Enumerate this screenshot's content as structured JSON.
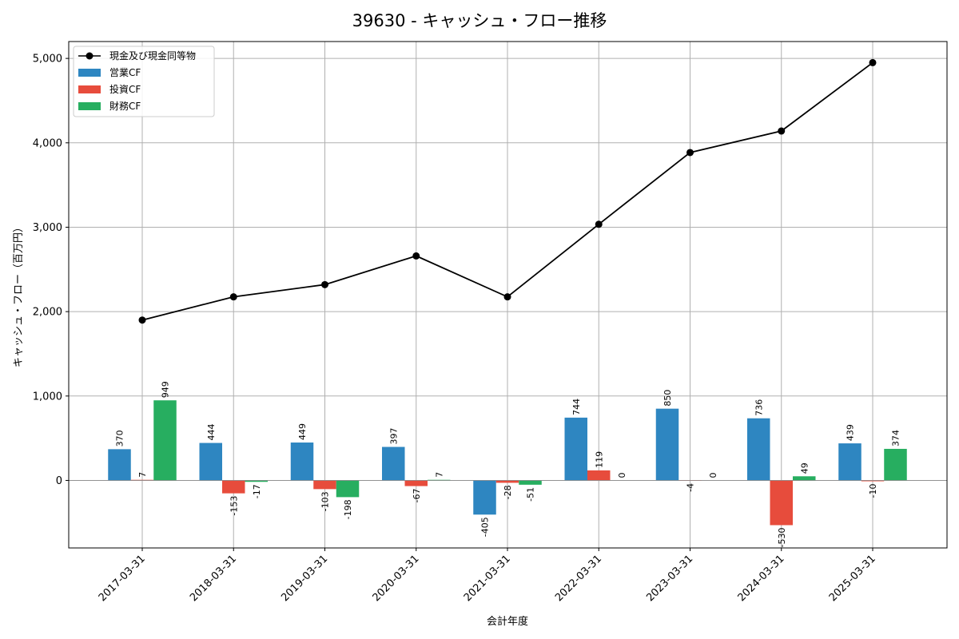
{
  "chart_data": {
    "type": "bar",
    "title": "39630 - キャッシュ・フロー推移",
    "xlabel": "会計年度",
    "ylabel": "キャッシュ・フロー（百万円）",
    "ylim": [
      -800,
      5200
    ],
    "yticks": [
      0,
      1000,
      2000,
      3000,
      4000,
      5000
    ],
    "ytick_labels": [
      "0",
      "1,000",
      "2,000",
      "3,000",
      "4,000",
      "5,000"
    ],
    "grid": true,
    "legend_position": "top-left",
    "categories": [
      "2017-03-31",
      "2018-03-31",
      "2019-03-31",
      "2020-03-31",
      "2021-03-31",
      "2022-03-31",
      "2023-03-31",
      "2024-03-31",
      "2025-03-31"
    ],
    "series": [
      {
        "name": "営業CF",
        "type": "bar",
        "color": "#2e86c1",
        "values": [
          370,
          444,
          449,
          397,
          -405,
          744,
          850,
          736,
          439
        ],
        "labels": [
          "370",
          "444",
          "449",
          "397",
          "-405",
          "744",
          "850",
          "736",
          "439"
        ]
      },
      {
        "name": "投資CF",
        "type": "bar",
        "color": "#e74c3c",
        "values": [
          7,
          -153,
          -103,
          -67,
          -28,
          119,
          -4,
          -530,
          -10
        ],
        "labels": [
          "7",
          "-153",
          "-103",
          "-67",
          "-28",
          "119",
          "-4",
          "-530",
          "-10"
        ]
      },
      {
        "name": "財務CF",
        "type": "bar",
        "color": "#27ae60",
        "values": [
          949,
          -17,
          -198,
          7,
          -51,
          0,
          0,
          49,
          374
        ],
        "labels": [
          "949",
          "-17",
          "-198",
          "7",
          "-51",
          "0",
          "0",
          "49",
          "374"
        ]
      }
    ],
    "line": {
      "name": "現金及び現金同等物",
      "color": "#000000",
      "values": [
        1900,
        2175,
        2320,
        2660,
        2175,
        3035,
        3885,
        4140,
        4950
      ]
    }
  }
}
